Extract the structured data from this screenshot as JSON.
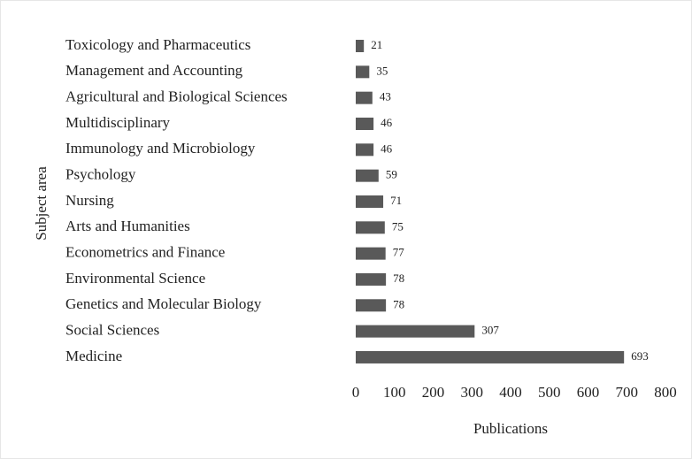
{
  "chart_data": {
    "type": "barh",
    "categories": [
      "Toxicology and Pharmaceutics",
      "Management and Accounting",
      "Agricultural and Biological Sciences",
      "Multidisciplinary",
      "Immunology and Microbiology",
      "Psychology",
      "Nursing",
      "Arts and Humanities",
      "Econometrics and Finance",
      "Environmental Science",
      "Genetics and Molecular Biology",
      "Social Sciences",
      "Medicine"
    ],
    "values": [
      21,
      35,
      43,
      46,
      46,
      59,
      71,
      75,
      77,
      78,
      78,
      307,
      693
    ],
    "color": "#595959",
    "xlabel": "Publications",
    "ylabel": "Subject area",
    "xlim": [
      0,
      800
    ],
    "xticks": [
      0,
      100,
      200,
      300,
      400,
      500,
      600,
      700,
      800
    ]
  }
}
